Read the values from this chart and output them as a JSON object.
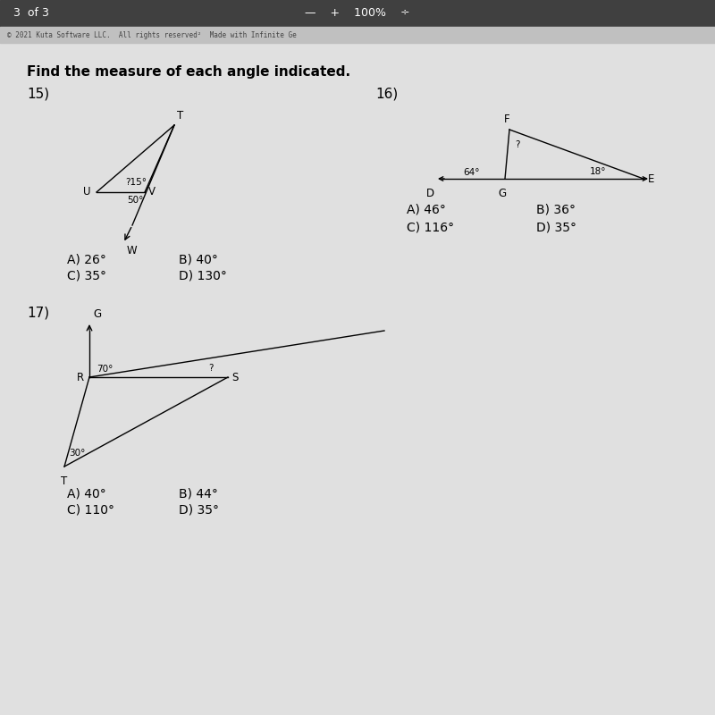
{
  "header_text_left": "3  of 3",
  "header_text_center": "—    +    100%    ÷",
  "subheader_text": "© 2021 Kuta Software LLC.  All rights reserved²  Made with Infinite Ge",
  "title": "Find the measure of each angle indicated.",
  "p15_number": "15)",
  "p15_angle1": "?15°",
  "p15_angle2": "50°",
  "p15_label_U": "U",
  "p15_label_V": "V",
  "p15_label_T": "T",
  "p15_label_W": "W",
  "p15_choices": [
    "A) 26°",
    "B) 40°",
    "C) 35°",
    "D) 130°"
  ],
  "p16_number": "16)",
  "p16_label_F": "F",
  "p16_label_D": "D",
  "p16_label_G": "G",
  "p16_label_E": "E",
  "p16_angle1": "?",
  "p16_angle2": "64°",
  "p16_angle3": "18°",
  "p16_choices": [
    "A) 46°",
    "B) 36°",
    "C) 116°",
    "D) 35°"
  ],
  "p17_number": "17)",
  "p17_label_G": "G",
  "p17_label_R": "R",
  "p17_label_S": "S",
  "p17_label_T": "T",
  "p17_angle1": "70°",
  "p17_angle2": "?",
  "p17_angle3": "30°",
  "p17_choices": [
    "A) 40°",
    "B) 44°",
    "C) 110°",
    "D) 35°"
  ],
  "bg_color": "#d4d4d4",
  "header_bg": "#404040",
  "subheader_bg": "#c0c0c0",
  "content_bg": "#e0e0e0"
}
